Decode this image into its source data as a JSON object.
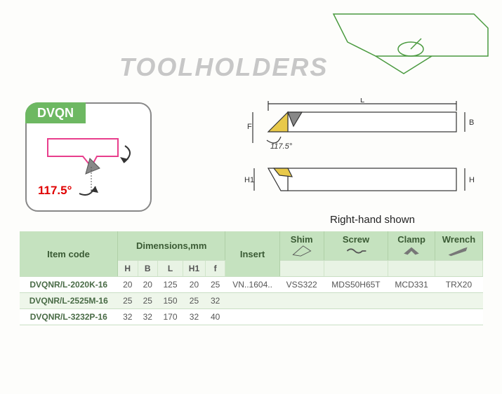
{
  "title": "TOOLHOLDERS",
  "product_code": "DVQN",
  "angle": "117.5°",
  "diagram_angle": "117.5°",
  "diagram_labels": {
    "L": "L",
    "F": "F",
    "B": "B",
    "H": "H",
    "H1": "H1"
  },
  "rh_shown": "Right-hand shown",
  "table": {
    "headers": {
      "item_code": "Item code",
      "dimensions": "Dimensions,mm",
      "insert": "Insert",
      "shim": "Shim",
      "screw": "Screw",
      "clamp": "Clamp",
      "wrench": "Wrench",
      "dim_cols": [
        "H",
        "B",
        "L",
        "H1",
        "f"
      ]
    },
    "rows": [
      {
        "code": "DVQNR/L-2020K-16",
        "H": "20",
        "B": "20",
        "L": "125",
        "H1": "20",
        "f": "25",
        "insert": "VN..1604..",
        "shim": "VSS322",
        "screw": "MDS50H65T",
        "clamp": "MCD331",
        "wrench": "TRX20"
      },
      {
        "code": "DVQNR/L-2525M-16",
        "H": "25",
        "B": "25",
        "L": "150",
        "H1": "25",
        "f": "32",
        "insert": "",
        "shim": "",
        "screw": "",
        "clamp": "",
        "wrench": ""
      },
      {
        "code": "DVQNR/L-3232P-16",
        "H": "32",
        "B": "32",
        "L": "170",
        "H1": "32",
        "f": "40",
        "insert": "",
        "shim": "",
        "screw": "",
        "clamp": "",
        "wrench": ""
      }
    ]
  },
  "colors": {
    "brand_green": "#6db862",
    "header_bg": "#c5e2bf",
    "row_alt": "#eef6ea",
    "title_gray": "#c7c7c7",
    "angle_red": "#e00000",
    "outline_green": "#4a9a3f",
    "pink": "#e83e8c"
  }
}
